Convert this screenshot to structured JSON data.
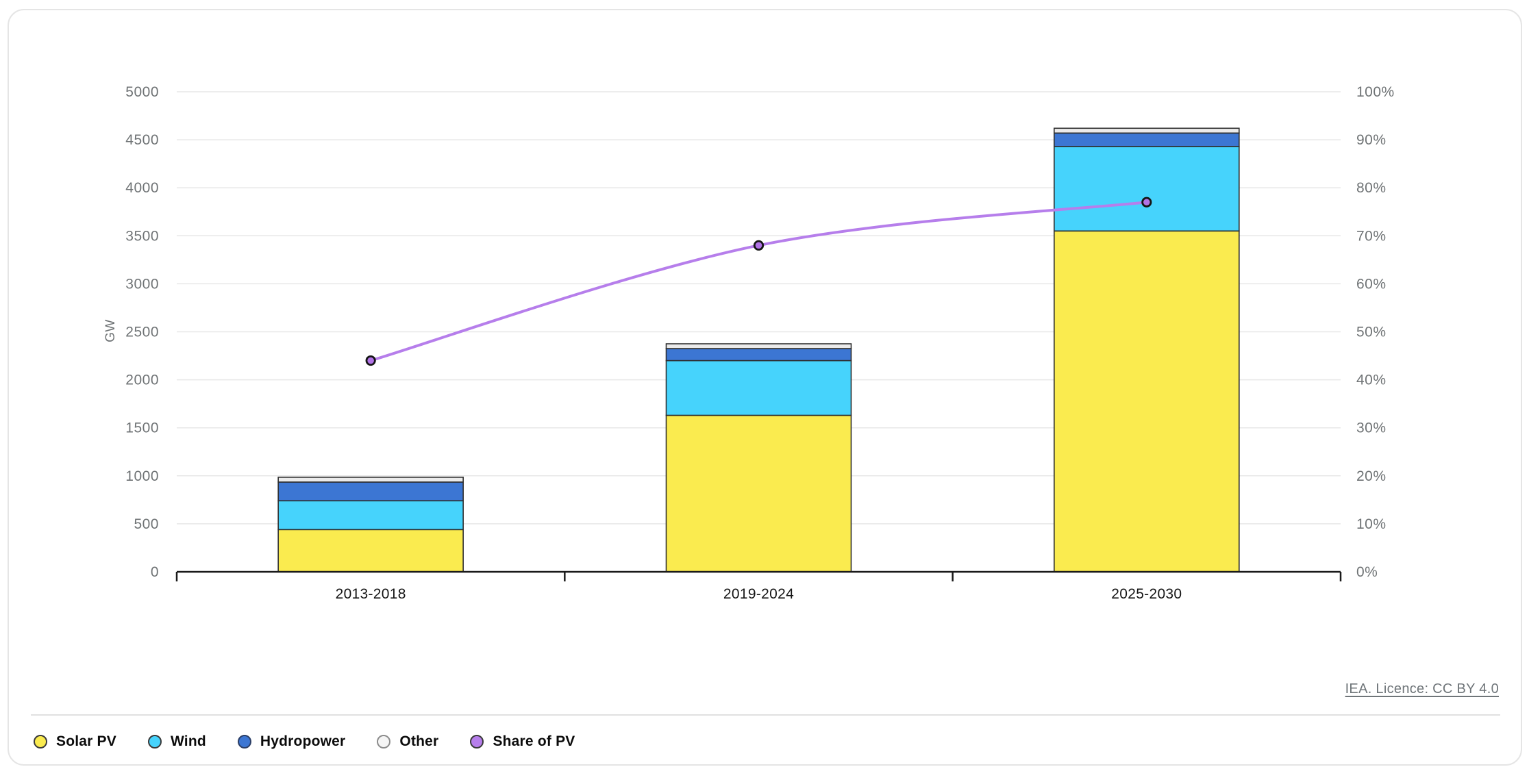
{
  "licence": {
    "label": "IEA. Licence: CC BY 4.0"
  },
  "legend": {
    "items": [
      {
        "label": "Solar PV",
        "color": "#FAEB4F",
        "border": "#3A3A3A"
      },
      {
        "label": "Wind",
        "color": "#46D3FC",
        "border": "#3A3A3A"
      },
      {
        "label": "Hydropower",
        "color": "#3C76D3",
        "border": "#2B3E66"
      },
      {
        "label": "Other",
        "color": "#F5F5F5",
        "border": "#8C8C8C"
      },
      {
        "label": "Share of PV",
        "color": "#B67EEB",
        "border": "#3A3A3A"
      }
    ]
  },
  "colors": {
    "grid": "#E7E7E7",
    "axis": "#1A1A1A",
    "bar_border": "#2E2E2E",
    "tick_label": "#6F7375",
    "category_label": "#161616",
    "divider": "#E0E0E0",
    "card_border": "#E5E5E5",
    "licence_text": "#6F7579"
  },
  "chart_data": {
    "type": "bar",
    "stacked": true,
    "title": "",
    "categories": [
      "2013-2018",
      "2019-2024",
      "2025-2030"
    ],
    "series": [
      {
        "name": "Solar PV",
        "color": "#FAEB4F",
        "values": [
          440,
          1630,
          3550
        ]
      },
      {
        "name": "Wind",
        "color": "#46D3FC",
        "values": [
          300,
          570,
          880
        ]
      },
      {
        "name": "Hydropower",
        "color": "#3C76D3",
        "values": [
          195,
          125,
          140
        ]
      },
      {
        "name": "Other",
        "color": "#EBEBEB",
        "values": [
          50,
          50,
          50
        ]
      }
    ],
    "totals": [
      985,
      2375,
      4620
    ],
    "line_series": {
      "name": "Share of PV",
      "axis": "right",
      "color": "#B67EEB",
      "marker_color": "#B173E6",
      "values_pct": [
        44,
        68,
        77
      ]
    },
    "xlabel": "",
    "ylabel": "GW",
    "y2label": "",
    "ylim": [
      0,
      5000
    ],
    "ytick_step": 500,
    "y_ticks": [
      0,
      500,
      1000,
      1500,
      2000,
      2500,
      3000,
      3500,
      4000,
      4500,
      5000
    ],
    "y2lim": [
      0,
      100
    ],
    "y2tick_step": 10,
    "y2_ticks": [
      0,
      10,
      20,
      30,
      40,
      50,
      60,
      70,
      80,
      90,
      100
    ],
    "y2format": "percent",
    "grid": true,
    "legend_position": "bottom"
  }
}
